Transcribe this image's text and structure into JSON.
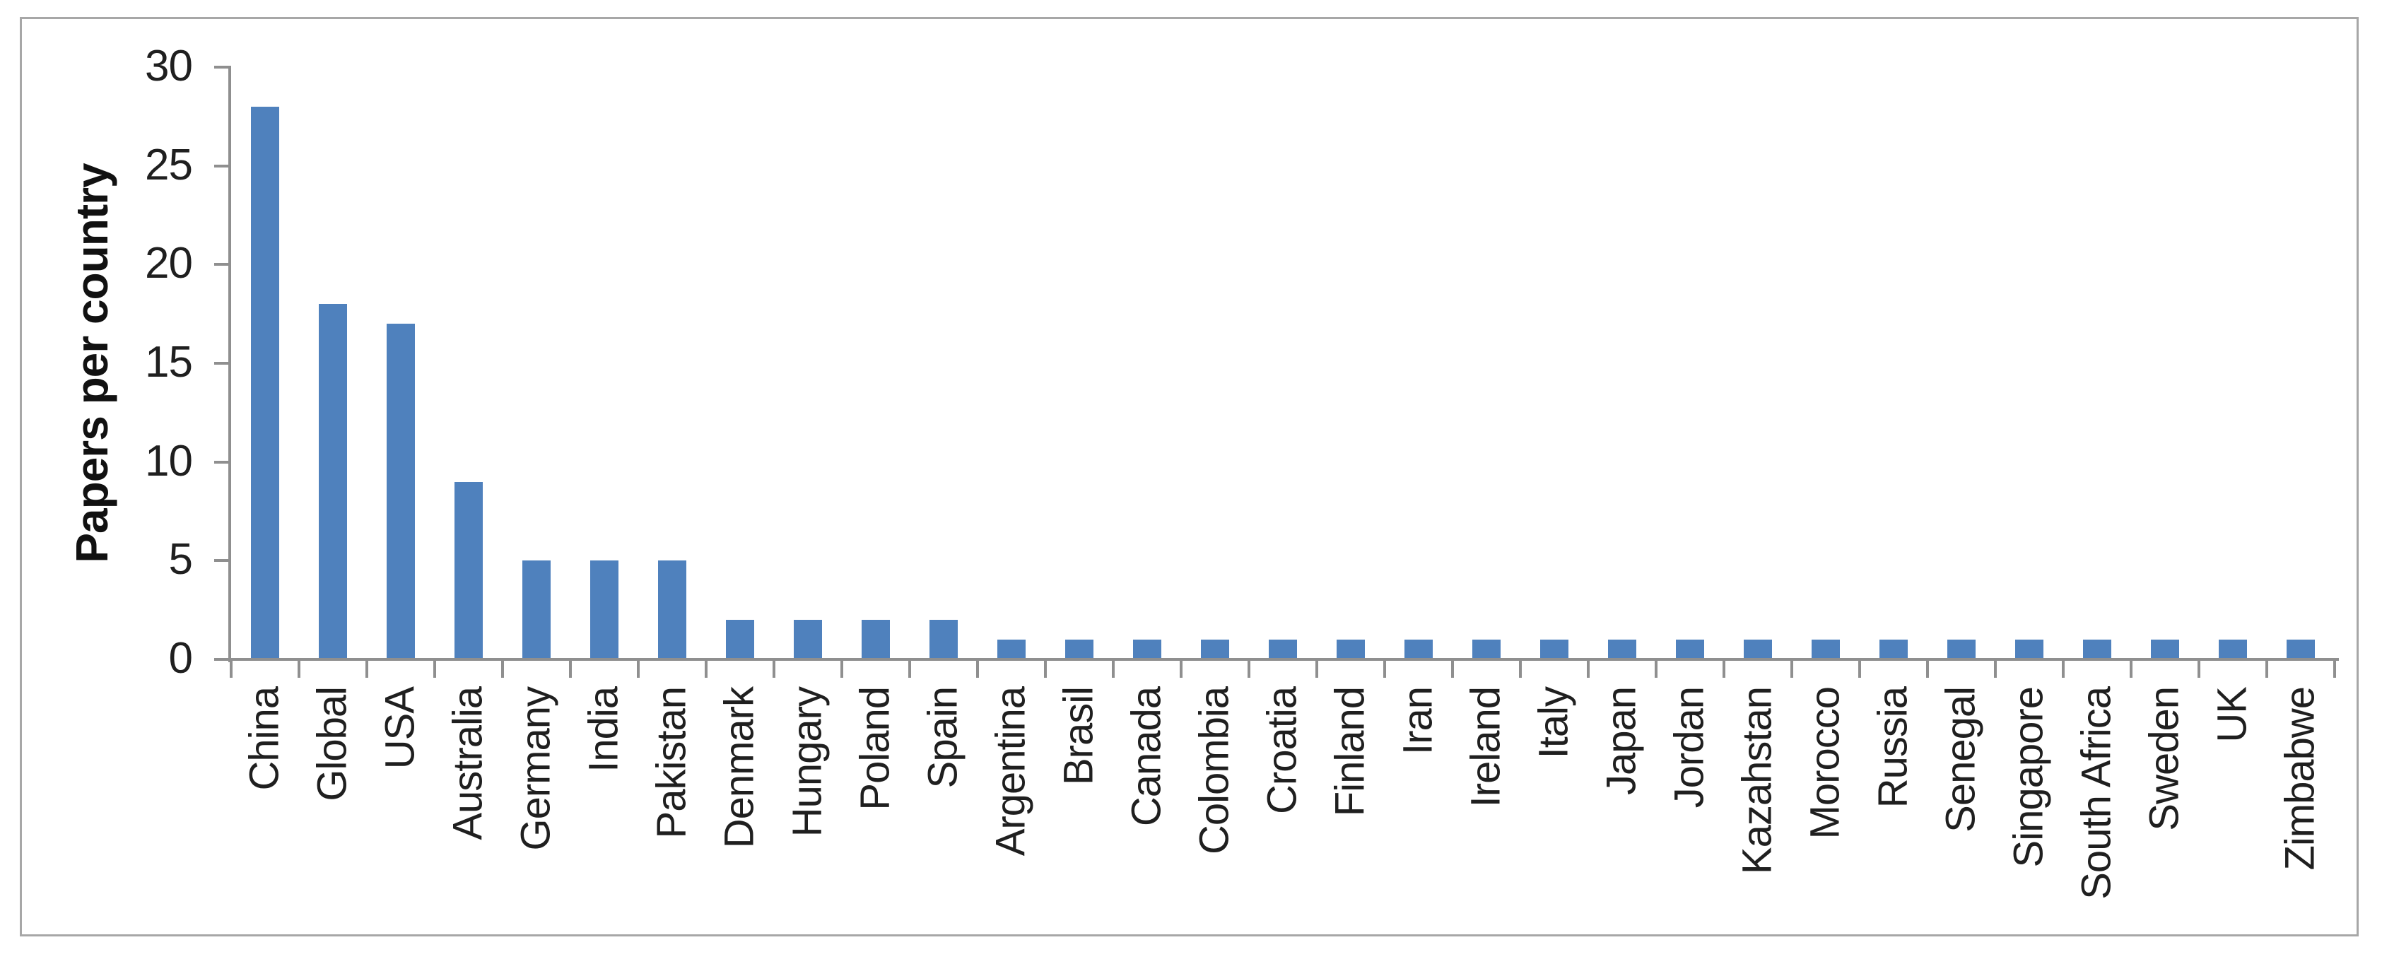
{
  "chart_data": {
    "type": "bar",
    "title": "",
    "xlabel": "",
    "ylabel": "Papers per country",
    "categories": [
      "China",
      "Global",
      "USA",
      "Australia",
      "Germany",
      "India",
      "Pakistan",
      "Denmark",
      "Hungary",
      "Poland",
      "Spain",
      "Argentina",
      "Brasil",
      "Canada",
      "Colombia",
      "Croatia",
      "Finland",
      "Iran",
      "Ireland",
      "Italy",
      "Japan",
      "Jordan",
      "Kazahstan",
      "Morocco",
      "Russia",
      "Senegal",
      "Singapore",
      "South Africa",
      "Sweden",
      "UK",
      "Zimbabwe"
    ],
    "values": [
      28,
      18,
      17,
      9,
      5,
      5,
      5,
      2,
      2,
      2,
      2,
      1,
      1,
      1,
      1,
      1,
      1,
      1,
      1,
      1,
      1,
      1,
      1,
      1,
      1,
      1,
      1,
      1,
      1,
      1,
      1
    ],
    "yticks": [
      0,
      5,
      10,
      15,
      20,
      25,
      30
    ],
    "ylim": [
      0,
      30
    ],
    "grid": false,
    "legend": null,
    "bar_color": "#4F81BD",
    "axis_color": "#8F8F8F",
    "frame_color": "#A7A7A7",
    "text_color": "#1F1F1F"
  }
}
